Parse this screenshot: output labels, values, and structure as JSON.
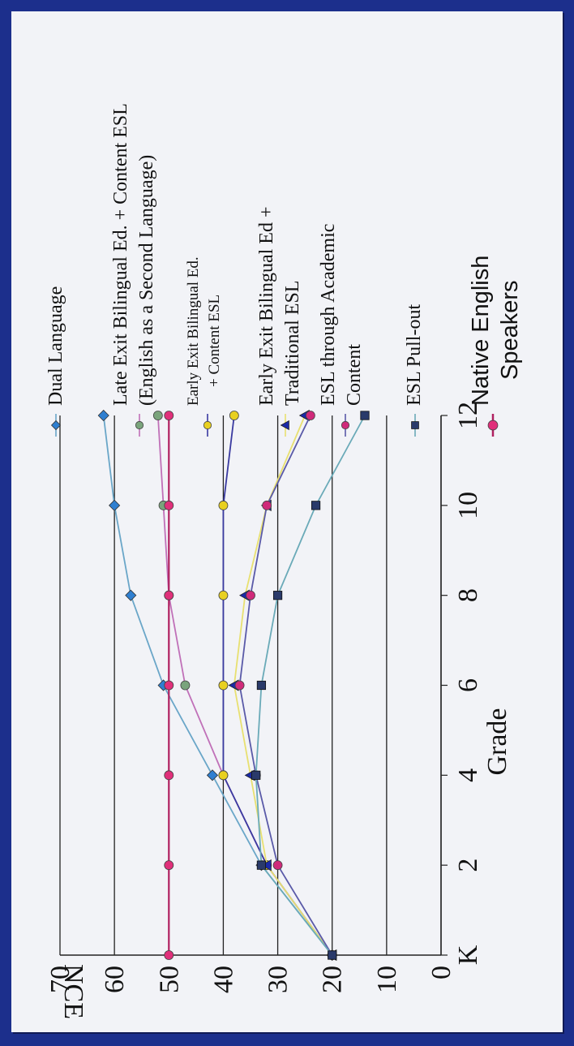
{
  "chart_data": {
    "type": "line",
    "xlabel": "Grade",
    "ylabel": "NCE",
    "x": [
      "K",
      "2",
      "4",
      "6",
      "8",
      "10",
      "12"
    ],
    "ylim": [
      0,
      70
    ],
    "yticks": [
      "0",
      "10",
      "20",
      "30",
      "40",
      "50",
      "60",
      "70"
    ],
    "grid": true,
    "orientation": "rotated 90 degrees clockwise",
    "legend_position": "right",
    "series": [
      {
        "name": "Dual Language",
        "color": "#2f7fd0",
        "line": "#6aa6c8",
        "marker": "diamond",
        "values": [
          20,
          33,
          42,
          51,
          57,
          60,
          62
        ]
      },
      {
        "name": "Late Exit Bilingual Ed. + Content ESL (English as a Second Language)",
        "color": "#7aa47c",
        "line": "#c070b8",
        "marker": "circle",
        "values": [
          20,
          32,
          40,
          47,
          50,
          51,
          52
        ]
      },
      {
        "name": "Early Exit Bilingual Ed. + Content ESL",
        "color": "#e8d020",
        "line": "#3a3aa0",
        "marker": "circle",
        "values": [
          20,
          32,
          40,
          40,
          40,
          40,
          38
        ]
      },
      {
        "name": "Early Exit Bilingual Ed + Traditional ESL",
        "color": "#1a2aa8",
        "line": "#e8e070",
        "marker": "triangle",
        "values": [
          20,
          32,
          35,
          38,
          36,
          32,
          25
        ]
      },
      {
        "name": "ESL through Academic Content",
        "color": "#d02a7a",
        "line": "#5a5aa8",
        "marker": "circle",
        "values": [
          20,
          30,
          34,
          37,
          35,
          32,
          24
        ]
      },
      {
        "name": "ESL Pull-out",
        "color": "#2a3a6a",
        "line": "#6aaab8",
        "marker": "square",
        "values": [
          20,
          33,
          34,
          33,
          30,
          23,
          14
        ]
      },
      {
        "name": "Native English Speakers",
        "color": "#e0307a",
        "line": "#b02060",
        "marker": "circle",
        "values": [
          50,
          50,
          50,
          50,
          50,
          50,
          50
        ]
      }
    ],
    "legend": {
      "dual": "Dual Language",
      "late_1": "Late Exit Bilingual Ed. + Content ESL",
      "late_2": "(English as a Second Language)",
      "early_content_1": "Early Exit Bilingual Ed.",
      "early_content_2": "+ Content ESL",
      "early_trad_1": "Early Exit Bilingual Ed +",
      "early_trad_2": "Traditional ESL",
      "academic_1": "ESL through Academic",
      "academic_2": "Content",
      "pullout": "ESL Pull-out",
      "native_1": "Native English",
      "native_2": "Speakers"
    }
  }
}
